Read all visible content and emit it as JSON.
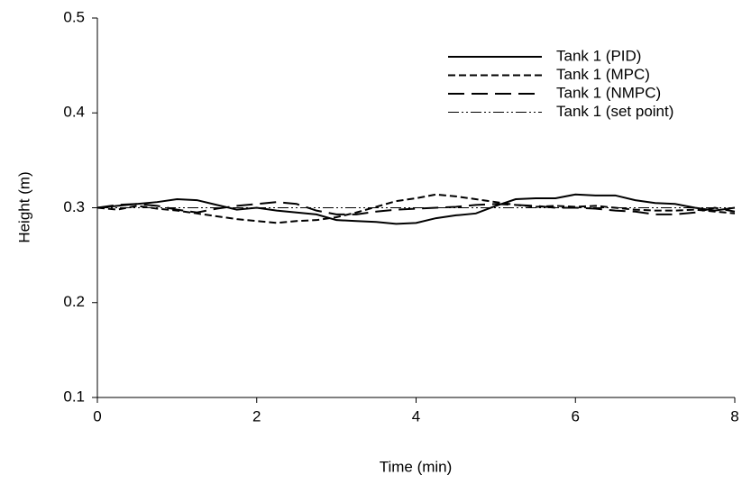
{
  "chart_data": {
    "type": "line",
    "xlabel": "Time (min)",
    "ylabel": "Height (m)",
    "x": [
      0,
      0.25,
      0.5,
      0.75,
      1,
      1.25,
      1.5,
      1.75,
      2,
      2.25,
      2.5,
      2.75,
      3,
      3.25,
      3.5,
      3.75,
      4,
      4.25,
      4.5,
      4.75,
      5,
      5.25,
      5.5,
      5.75,
      6,
      6.25,
      6.5,
      6.75,
      7,
      7.25,
      7.5,
      7.75,
      8
    ],
    "series": [
      {
        "name": "Tank 1 (PID)",
        "color": "#000000",
        "dash": "solid",
        "values": [
          0.3,
          0.302,
          0.304,
          0.306,
          0.309,
          0.308,
          0.303,
          0.298,
          0.3,
          0.297,
          0.295,
          0.293,
          0.287,
          0.286,
          0.285,
          0.283,
          0.284,
          0.289,
          0.292,
          0.294,
          0.302,
          0.309,
          0.31,
          0.31,
          0.314,
          0.313,
          0.313,
          0.308,
          0.305,
          0.304,
          0.3,
          0.297,
          0.3
        ]
      },
      {
        "name": "Tank 1 (MPC)",
        "color": "#000000",
        "dash": "short-dash",
        "values": [
          0.3,
          0.298,
          0.302,
          0.299,
          0.297,
          0.294,
          0.291,
          0.288,
          0.286,
          0.284,
          0.286,
          0.287,
          0.29,
          0.295,
          0.301,
          0.307,
          0.31,
          0.314,
          0.312,
          0.309,
          0.306,
          0.303,
          0.301,
          0.302,
          0.301,
          0.302,
          0.3,
          0.298,
          0.297,
          0.297,
          0.298,
          0.296,
          0.294
        ]
      },
      {
        "name": "Tank 1 (NMPC)",
        "color": "#000000",
        "dash": "long-dash",
        "values": [
          0.3,
          0.303,
          0.304,
          0.302,
          0.298,
          0.295,
          0.299,
          0.302,
          0.304,
          0.306,
          0.304,
          0.297,
          0.293,
          0.293,
          0.296,
          0.298,
          0.299,
          0.3,
          0.301,
          0.303,
          0.304,
          0.303,
          0.302,
          0.3,
          0.3,
          0.299,
          0.297,
          0.296,
          0.293,
          0.293,
          0.295,
          0.3,
          0.296
        ]
      },
      {
        "name": "Tank 1 (set point)",
        "color": "#000000",
        "dash": "dash-dot-dot",
        "values": [
          0.3,
          0.3,
          0.3,
          0.3,
          0.3,
          0.3,
          0.3,
          0.3,
          0.3,
          0.3,
          0.3,
          0.3,
          0.3,
          0.3,
          0.3,
          0.3,
          0.3,
          0.3,
          0.3,
          0.3,
          0.3,
          0.3,
          0.3,
          0.3,
          0.3,
          0.3,
          0.3,
          0.3,
          0.3,
          0.3,
          0.3,
          0.3,
          0.3
        ]
      }
    ],
    "xlim": [
      0,
      8
    ],
    "xticks": [
      0,
      2,
      4,
      6,
      8
    ],
    "ylim": [
      0.1,
      0.5
    ],
    "yticks": [
      0.1,
      0.2,
      0.3,
      0.4,
      0.5
    ],
    "grid": false,
    "legend": "upper right"
  }
}
